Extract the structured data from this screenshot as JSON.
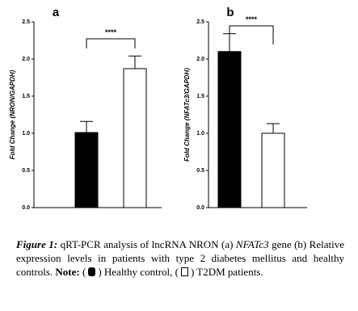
{
  "chart_data": [
    {
      "type": "bar",
      "panel": "a",
      "ylabel": "Fold Change (NRON/GAPDH)",
      "categories": [
        null,
        null
      ],
      "values": [
        1.01,
        1.87
      ],
      "errors": [
        0.15,
        0.17
      ],
      "colors": [
        "#000000",
        "#ffffff"
      ],
      "significance": "****",
      "ylim": [
        0,
        2.5
      ],
      "yticks": [
        {
          "value": 0,
          "label": "0.0"
        },
        {
          "value": 0.5,
          "label": "0.5"
        },
        {
          "value": 1,
          "label": "1.0"
        },
        {
          "value": 1.5,
          "label": "1.5"
        },
        {
          "value": 2,
          "label": "2.0"
        },
        {
          "value": 2.5,
          "label": "2.5"
        }
      ]
    },
    {
      "type": "bar",
      "panel": "b",
      "ylabel": "Fold Change (NFATc3/GAPDH)",
      "categories": [
        null,
        null
      ],
      "values": [
        2.1,
        1.0
      ],
      "errors": [
        0.24,
        0.13
      ],
      "colors": [
        "#000000",
        "#ffffff"
      ],
      "significance": "****",
      "ylim": [
        0,
        2.5
      ],
      "yticks": [
        {
          "value": 0,
          "label": "0.0"
        },
        {
          "value": 0.5,
          "label": "0.5"
        },
        {
          "value": 1,
          "label": "1.0"
        },
        {
          "value": 1.5,
          "label": "1.5"
        },
        {
          "value": 2,
          "label": "2.0"
        },
        {
          "value": 2.5,
          "label": "2.5"
        }
      ]
    }
  ],
  "caption": {
    "label": "Figure 1:",
    "runs": [
      "qRT-PCR analysis of lncRNA NRON (a)",
      "NFATc3",
      "gene (b) Relative expression levels in patients with type 2 diabetes mellitus and healthy controls.",
      "Note:",
      "(",
      ") Healthy control, (",
      ") T2DM patients."
    ]
  }
}
